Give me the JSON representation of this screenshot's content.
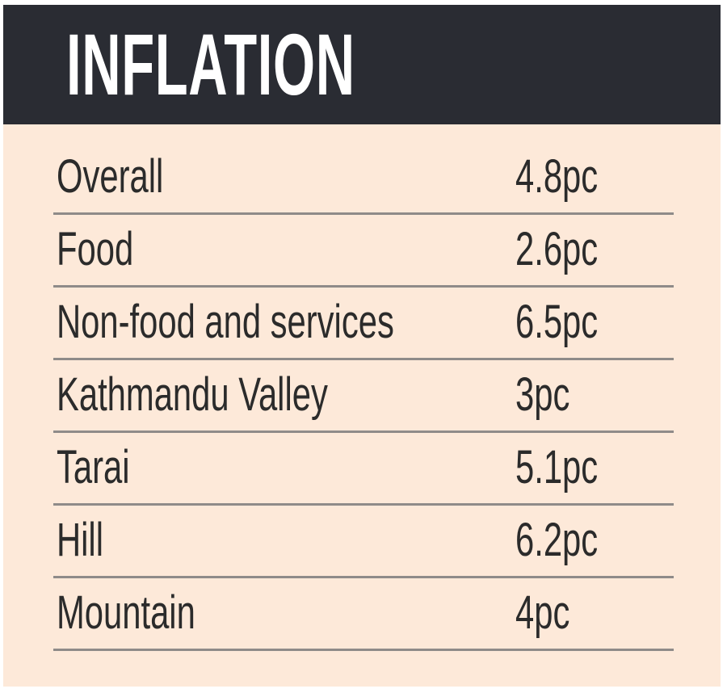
{
  "title": "INFLATION",
  "rows": [
    {
      "label": "Overall",
      "value": "4.8pc"
    },
    {
      "label": "Food",
      "value": "2.6pc"
    },
    {
      "label": "Non-food and services",
      "value": "6.5pc"
    },
    {
      "label": "Kathmandu Valley",
      "value": "3pc"
    },
    {
      "label": "Tarai",
      "value": "5.1pc"
    },
    {
      "label": "Hill",
      "value": "6.2pc"
    },
    {
      "label": "Mountain",
      "value": "4pc"
    }
  ],
  "colors": {
    "header_bg": "#2a2c33",
    "body_bg": "#fde9d9",
    "rule": "#8f8b89"
  }
}
